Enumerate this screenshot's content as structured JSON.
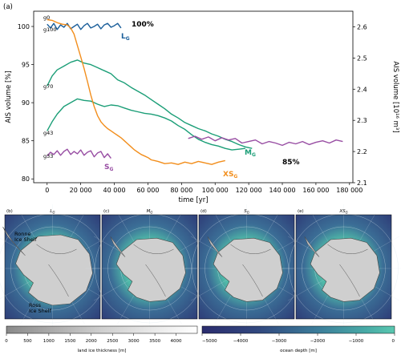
{
  "chart_data": {
    "type": "line",
    "panel_label": "(a)",
    "xlabel": "time [yr]",
    "ylabel_left": "AIS volume [%]",
    "ylabel_right": "AIS volume [10¹⁶ m³]",
    "xlim": [
      -8000,
      182000
    ],
    "ylim": [
      79.5,
      102
    ],
    "ylim_right": [
      2.1,
      2.65
    ],
    "x_ticks": [
      0,
      20000,
      40000,
      60000,
      80000,
      100000,
      120000,
      140000,
      160000,
      180000
    ],
    "x_tick_labels": [
      "0",
      "20 000",
      "40 000",
      "60 000",
      "80 000",
      "100 000",
      "120 000",
      "140 000",
      "160 000",
      "180 000"
    ],
    "y_ticks": [
      80,
      85,
      90,
      95,
      100
    ],
    "y_tick_labels": [
      "80",
      "85",
      "90",
      "95",
      "100"
    ],
    "y_right_ticks": [
      2.1,
      2.2,
      2.3,
      2.4,
      2.5,
      2.6
    ],
    "y_right_tick_labels": [
      "2.1",
      "2.2",
      "2.3",
      "2.4",
      "2.5",
      "2.6"
    ],
    "grid": false,
    "series": [
      {
        "name": "L",
        "sub": "G",
        "color": "#1a5e9a",
        "points": [
          [
            0,
            100.3
          ],
          [
            2000,
            99.8
          ],
          [
            4000,
            100.4
          ],
          [
            6000,
            99.6
          ],
          [
            8000,
            100.2
          ],
          [
            10000,
            99.9
          ],
          [
            12000,
            100.4
          ],
          [
            14000,
            99.7
          ],
          [
            16000,
            100.0
          ],
          [
            18000,
            100.3
          ],
          [
            20000,
            99.6
          ],
          [
            22000,
            100.1
          ],
          [
            24000,
            100.4
          ],
          [
            26000,
            99.8
          ],
          [
            28000,
            100.0
          ],
          [
            30000,
            100.3
          ],
          [
            32000,
            99.7
          ],
          [
            34000,
            100.2
          ],
          [
            36000,
            100.4
          ],
          [
            38000,
            99.9
          ],
          [
            40000,
            100.1
          ],
          [
            42000,
            100.4
          ],
          [
            44000,
            99.8
          ]
        ]
      },
      {
        "name": "M",
        "sub": "G",
        "color": "#1b9e77",
        "points": [
          [
            0,
            92.2
          ],
          [
            3000,
            93.5
          ],
          [
            6000,
            94.3
          ],
          [
            10000,
            94.8
          ],
          [
            14000,
            95.3
          ],
          [
            18000,
            95.6
          ],
          [
            22000,
            95.2
          ],
          [
            26000,
            95.0
          ],
          [
            30000,
            94.6
          ],
          [
            34000,
            94.2
          ],
          [
            38000,
            93.8
          ],
          [
            42000,
            93.0
          ],
          [
            46000,
            92.6
          ],
          [
            50000,
            92.0
          ],
          [
            54000,
            91.5
          ],
          [
            58000,
            91.0
          ],
          [
            62000,
            90.4
          ],
          [
            66000,
            89.8
          ],
          [
            70000,
            89.2
          ],
          [
            74000,
            88.5
          ],
          [
            78000,
            88.0
          ],
          [
            82000,
            87.4
          ],
          [
            86000,
            87.0
          ],
          [
            90000,
            86.6
          ],
          [
            94000,
            86.3
          ],
          [
            98000,
            85.9
          ],
          [
            102000,
            85.6
          ],
          [
            106000,
            85.2
          ],
          [
            110000,
            84.9
          ],
          [
            114000,
            84.5
          ],
          [
            118000,
            84.2
          ],
          [
            122000,
            84.0
          ]
        ]
      },
      {
        "name": "g43",
        "color": "#1b9e77",
        "points": [
          [
            0,
            86.3
          ],
          [
            3000,
            87.5
          ],
          [
            6000,
            88.5
          ],
          [
            10000,
            89.5
          ],
          [
            14000,
            90.0
          ],
          [
            18000,
            90.5
          ],
          [
            22000,
            90.3
          ],
          [
            26000,
            90.2
          ],
          [
            30000,
            89.8
          ],
          [
            34000,
            89.5
          ],
          [
            38000,
            89.7
          ],
          [
            42000,
            89.6
          ],
          [
            46000,
            89.3
          ],
          [
            50000,
            89.0
          ],
          [
            54000,
            88.8
          ],
          [
            58000,
            88.6
          ],
          [
            62000,
            88.5
          ],
          [
            66000,
            88.3
          ],
          [
            70000,
            88.0
          ],
          [
            74000,
            87.6
          ],
          [
            78000,
            87.0
          ],
          [
            82000,
            86.5
          ],
          [
            86000,
            85.8
          ],
          [
            90000,
            85.2
          ],
          [
            94000,
            84.8
          ],
          [
            98000,
            84.5
          ],
          [
            102000,
            84.3
          ],
          [
            106000,
            84.0
          ],
          [
            110000,
            83.8
          ],
          [
            114000,
            83.9
          ],
          [
            118000,
            84.0
          ]
        ]
      },
      {
        "name": "S",
        "sub": "G",
        "color": "#984ea3",
        "points": [
          [
            0,
            83.0
          ],
          [
            2000,
            83.5
          ],
          [
            4000,
            83.2
          ],
          [
            6000,
            83.7
          ],
          [
            8000,
            83.1
          ],
          [
            10000,
            83.6
          ],
          [
            12000,
            83.9
          ],
          [
            14000,
            83.2
          ],
          [
            16000,
            83.6
          ],
          [
            18000,
            83.3
          ],
          [
            20000,
            83.8
          ],
          [
            22000,
            83.1
          ],
          [
            24000,
            83.5
          ],
          [
            26000,
            83.7
          ],
          [
            28000,
            82.9
          ],
          [
            30000,
            83.4
          ],
          [
            32000,
            83.6
          ],
          [
            34000,
            82.8
          ],
          [
            36000,
            83.3
          ],
          [
            38000,
            82.7
          ]
        ]
      },
      {
        "name": "g33-long",
        "color": "#984ea3",
        "points": [
          [
            84000,
            85.3
          ],
          [
            88000,
            85.6
          ],
          [
            92000,
            85.2
          ],
          [
            96000,
            85.5
          ],
          [
            100000,
            85.0
          ],
          [
            104000,
            85.4
          ],
          [
            108000,
            85.1
          ],
          [
            112000,
            85.3
          ],
          [
            116000,
            84.7
          ],
          [
            120000,
            84.9
          ],
          [
            124000,
            85.1
          ],
          [
            128000,
            84.6
          ],
          [
            132000,
            84.9
          ],
          [
            136000,
            84.7
          ],
          [
            140000,
            84.4
          ],
          [
            144000,
            84.8
          ],
          [
            148000,
            84.6
          ],
          [
            152000,
            84.9
          ],
          [
            156000,
            84.5
          ],
          [
            160000,
            84.8
          ],
          [
            164000,
            85.0
          ],
          [
            168000,
            84.7
          ],
          [
            172000,
            85.1
          ],
          [
            176000,
            84.9
          ]
        ]
      },
      {
        "name": "XS",
        "sub": "G",
        "color": "#f28e1c",
        "points": [
          [
            0,
            100.9
          ],
          [
            3000,
            100.8
          ],
          [
            6000,
            100.5
          ],
          [
            9000,
            100.3
          ],
          [
            12000,
            100.2
          ],
          [
            14000,
            99.8
          ],
          [
            16000,
            99.0
          ],
          [
            18000,
            97.5
          ],
          [
            20000,
            96.0
          ],
          [
            22000,
            94.5
          ],
          [
            24000,
            92.8
          ],
          [
            26000,
            91.0
          ],
          [
            28000,
            89.5
          ],
          [
            30000,
            88.3
          ],
          [
            32000,
            87.5
          ],
          [
            34000,
            87.0
          ],
          [
            36000,
            86.6
          ],
          [
            38000,
            86.3
          ],
          [
            40000,
            86.0
          ],
          [
            42000,
            85.7
          ],
          [
            44000,
            85.4
          ],
          [
            46000,
            85.0
          ],
          [
            48000,
            84.6
          ],
          [
            50000,
            84.2
          ],
          [
            52000,
            83.8
          ],
          [
            54000,
            83.5
          ],
          [
            56000,
            83.2
          ],
          [
            58000,
            83.0
          ],
          [
            60000,
            82.8
          ],
          [
            62000,
            82.5
          ],
          [
            64000,
            82.4
          ],
          [
            66000,
            82.3
          ],
          [
            70000,
            82.0
          ],
          [
            74000,
            82.1
          ],
          [
            78000,
            81.9
          ],
          [
            82000,
            82.2
          ],
          [
            86000,
            82.0
          ],
          [
            90000,
            82.3
          ],
          [
            94000,
            82.1
          ],
          [
            98000,
            81.9
          ],
          [
            102000,
            82.2
          ],
          [
            106000,
            82.4
          ]
        ]
      }
    ],
    "annotations": {
      "g0": "g0",
      "g100": "g100",
      "g70": "g70",
      "g43": "g43",
      "g33": "g33",
      "pct100": "100%",
      "pct85": "85%",
      "L": "L",
      "M": "M",
      "S": "S",
      "XS": "XS",
      "G": "G"
    }
  },
  "maps": {
    "panels": [
      {
        "label": "(b)",
        "title": "L",
        "sub": "G"
      },
      {
        "label": "(c)",
        "title": "M",
        "sub": "G"
      },
      {
        "label": "(d)",
        "title": "S",
        "sub": "G"
      },
      {
        "label": "(e)",
        "title": "XS",
        "sub": "G"
      }
    ],
    "ronne_label_1": "Ronne",
    "ronne_label_2": "Ice Shelf",
    "ross_label_1": "Ross",
    "ross_label_2": "Ice Shelf",
    "colorbar_ice": {
      "label": "land ice thickness [m]",
      "ticks": [
        "0",
        "500",
        "1000",
        "1500",
        "2000",
        "2500",
        "3000",
        "3500",
        "4000"
      ]
    },
    "colorbar_ocean": {
      "label": "ocean depth [m]",
      "ticks": [
        "−5000",
        "−4000",
        "−3000",
        "−2000",
        "−1000",
        "0"
      ]
    }
  }
}
